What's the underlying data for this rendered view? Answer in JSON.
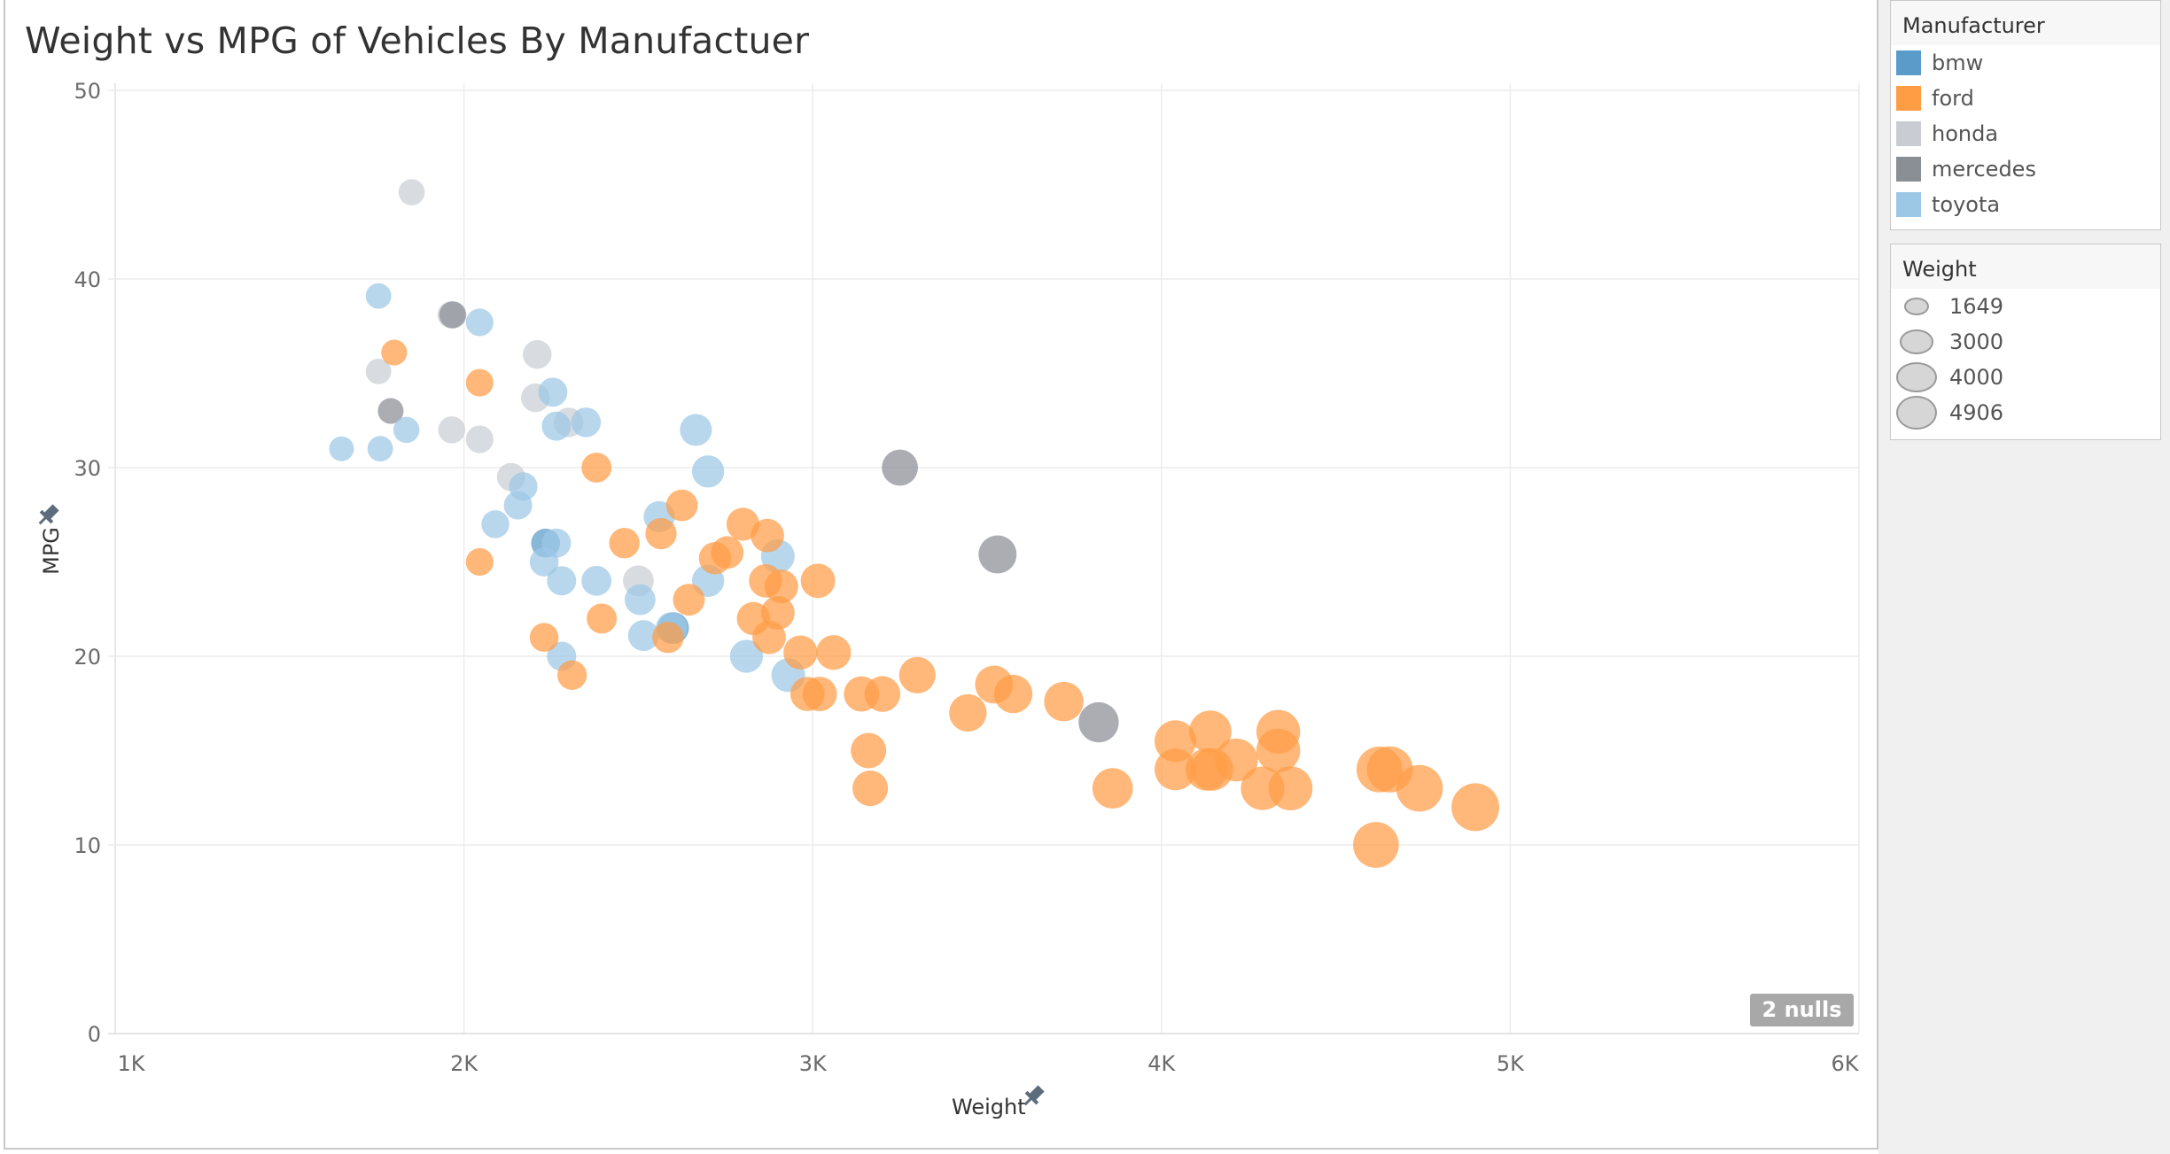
{
  "page": {
    "title": "Weight vs MPG of Vehicles By Manufactuer"
  },
  "nulls_badge": "2 nulls",
  "colors": {
    "bmw": "#5b9bc9",
    "ford": "#ff9d45",
    "honda": "#c9cdd3",
    "mercedes": "#8a8e95",
    "toyota": "#9cc8e6"
  },
  "legend_color": {
    "title": "Manufacturer",
    "items": [
      {
        "label": "bmw",
        "color": "#5b9bc9"
      },
      {
        "label": "ford",
        "color": "#ff9d45"
      },
      {
        "label": "honda",
        "color": "#c9cdd3"
      },
      {
        "label": "mercedes",
        "color": "#8a8e95"
      },
      {
        "label": "toyota",
        "color": "#9cc8e6"
      }
    ]
  },
  "legend_size": {
    "title": "Weight",
    "items": [
      {
        "label": "1649",
        "value": 1649
      },
      {
        "label": "3000",
        "value": 3000
      },
      {
        "label": "4000",
        "value": 4000
      },
      {
        "label": "4906",
        "value": 4906
      }
    ]
  },
  "chart_data": {
    "type": "scatter",
    "title": "Weight vs MPG of Vehicles By Manufactuer",
    "xlabel": "Weight",
    "ylabel": "MPG",
    "xlim": [
      1000,
      6000
    ],
    "ylim": [
      0,
      50
    ],
    "x_ticks": [
      1000,
      2000,
      3000,
      4000,
      5000,
      6000
    ],
    "x_tick_labels": [
      "1K",
      "2K",
      "3K",
      "4K",
      "5K",
      "6K"
    ],
    "y_ticks": [
      0,
      10,
      20,
      30,
      40,
      50
    ],
    "y_tick_labels": [
      "0",
      "10",
      "20",
      "30",
      "40",
      "50"
    ],
    "grid": true,
    "size_encoding": "Weight",
    "color_encoding": "Manufacturer",
    "series": [
      {
        "name": "honda",
        "points": [
          [
            1850,
            44.6
          ],
          [
            1963,
            38.1
          ],
          [
            1755,
            35.1
          ],
          [
            2210,
            36.0
          ],
          [
            2205,
            33.7
          ],
          [
            1965,
            32.0
          ],
          [
            2045,
            31.5
          ],
          [
            2135,
            29.5
          ],
          [
            2500,
            24.0
          ],
          [
            2300,
            32.4
          ]
        ]
      },
      {
        "name": "mercedes",
        "points": [
          [
            1790,
            33.0
          ],
          [
            1968,
            38.1
          ],
          [
            3250,
            30.0
          ],
          [
            3530,
            25.4
          ],
          [
            3820,
            16.5
          ]
        ]
      },
      {
        "name": "bmw",
        "points": [
          [
            2234,
            26.0
          ],
          [
            2600,
            21.5
          ]
        ]
      },
      {
        "name": "toyota",
        "points": [
          [
            1649,
            31.0
          ],
          [
            1755,
            39.1
          ],
          [
            1760,
            31.0
          ],
          [
            1835,
            32.0
          ],
          [
            2045,
            37.7
          ],
          [
            2255,
            34.0
          ],
          [
            2265,
            32.2
          ],
          [
            2350,
            32.4
          ],
          [
            2090,
            27.0
          ],
          [
            2155,
            28.0
          ],
          [
            2170,
            29.0
          ],
          [
            2230,
            25.0
          ],
          [
            2265,
            26.0
          ],
          [
            2280,
            24.0
          ],
          [
            2380,
            24.0
          ],
          [
            2280,
            20.0
          ],
          [
            2505,
            23.0
          ],
          [
            2515,
            21.1
          ],
          [
            2560,
            27.4
          ],
          [
            2665,
            32.0
          ],
          [
            2700,
            29.8
          ],
          [
            2700,
            24.0
          ],
          [
            2810,
            20.0
          ],
          [
            2900,
            25.3
          ],
          [
            2930,
            19.0
          ],
          [
            2595,
            21.5
          ]
        ]
      },
      {
        "name": "ford",
        "points": [
          [
            1800,
            36.1
          ],
          [
            2045,
            34.5
          ],
          [
            2045,
            25.0
          ],
          [
            2230,
            21.0
          ],
          [
            2310,
            19.0
          ],
          [
            2380,
            30.0
          ],
          [
            2395,
            22.0
          ],
          [
            2460,
            26.0
          ],
          [
            2565,
            26.5
          ],
          [
            2585,
            21.0
          ],
          [
            2625,
            28.0
          ],
          [
            2645,
            23.0
          ],
          [
            2720,
            25.2
          ],
          [
            2755,
            25.5
          ],
          [
            2800,
            27.0
          ],
          [
            2830,
            22.0
          ],
          [
            2865,
            24.0
          ],
          [
            2870,
            26.4
          ],
          [
            2875,
            21.0
          ],
          [
            2900,
            22.3
          ],
          [
            2910,
            23.7
          ],
          [
            2965,
            20.2
          ],
          [
            2985,
            18.0
          ],
          [
            3020,
            18.0
          ],
          [
            3015,
            24.0
          ],
          [
            3060,
            20.2
          ],
          [
            3140,
            18.0
          ],
          [
            3160,
            15.0
          ],
          [
            3165,
            13.0
          ],
          [
            3200,
            18.0
          ],
          [
            3300,
            19.0
          ],
          [
            3445,
            17.0
          ],
          [
            3520,
            18.5
          ],
          [
            3575,
            18.0
          ],
          [
            3720,
            17.6
          ],
          [
            3860,
            13.0
          ],
          [
            4040,
            15.5
          ],
          [
            4040,
            14.0
          ],
          [
            4140,
            16.0
          ],
          [
            4130,
            14.0
          ],
          [
            4145,
            14.0
          ],
          [
            4215,
            14.5
          ],
          [
            4290,
            13.0
          ],
          [
            4335,
            16.0
          ],
          [
            4335,
            15.0
          ],
          [
            4370,
            13.0
          ],
          [
            4615,
            10.0
          ],
          [
            4625,
            14.0
          ],
          [
            4655,
            14.0
          ],
          [
            4740,
            13.0
          ],
          [
            4900,
            12.0
          ]
        ]
      }
    ]
  }
}
